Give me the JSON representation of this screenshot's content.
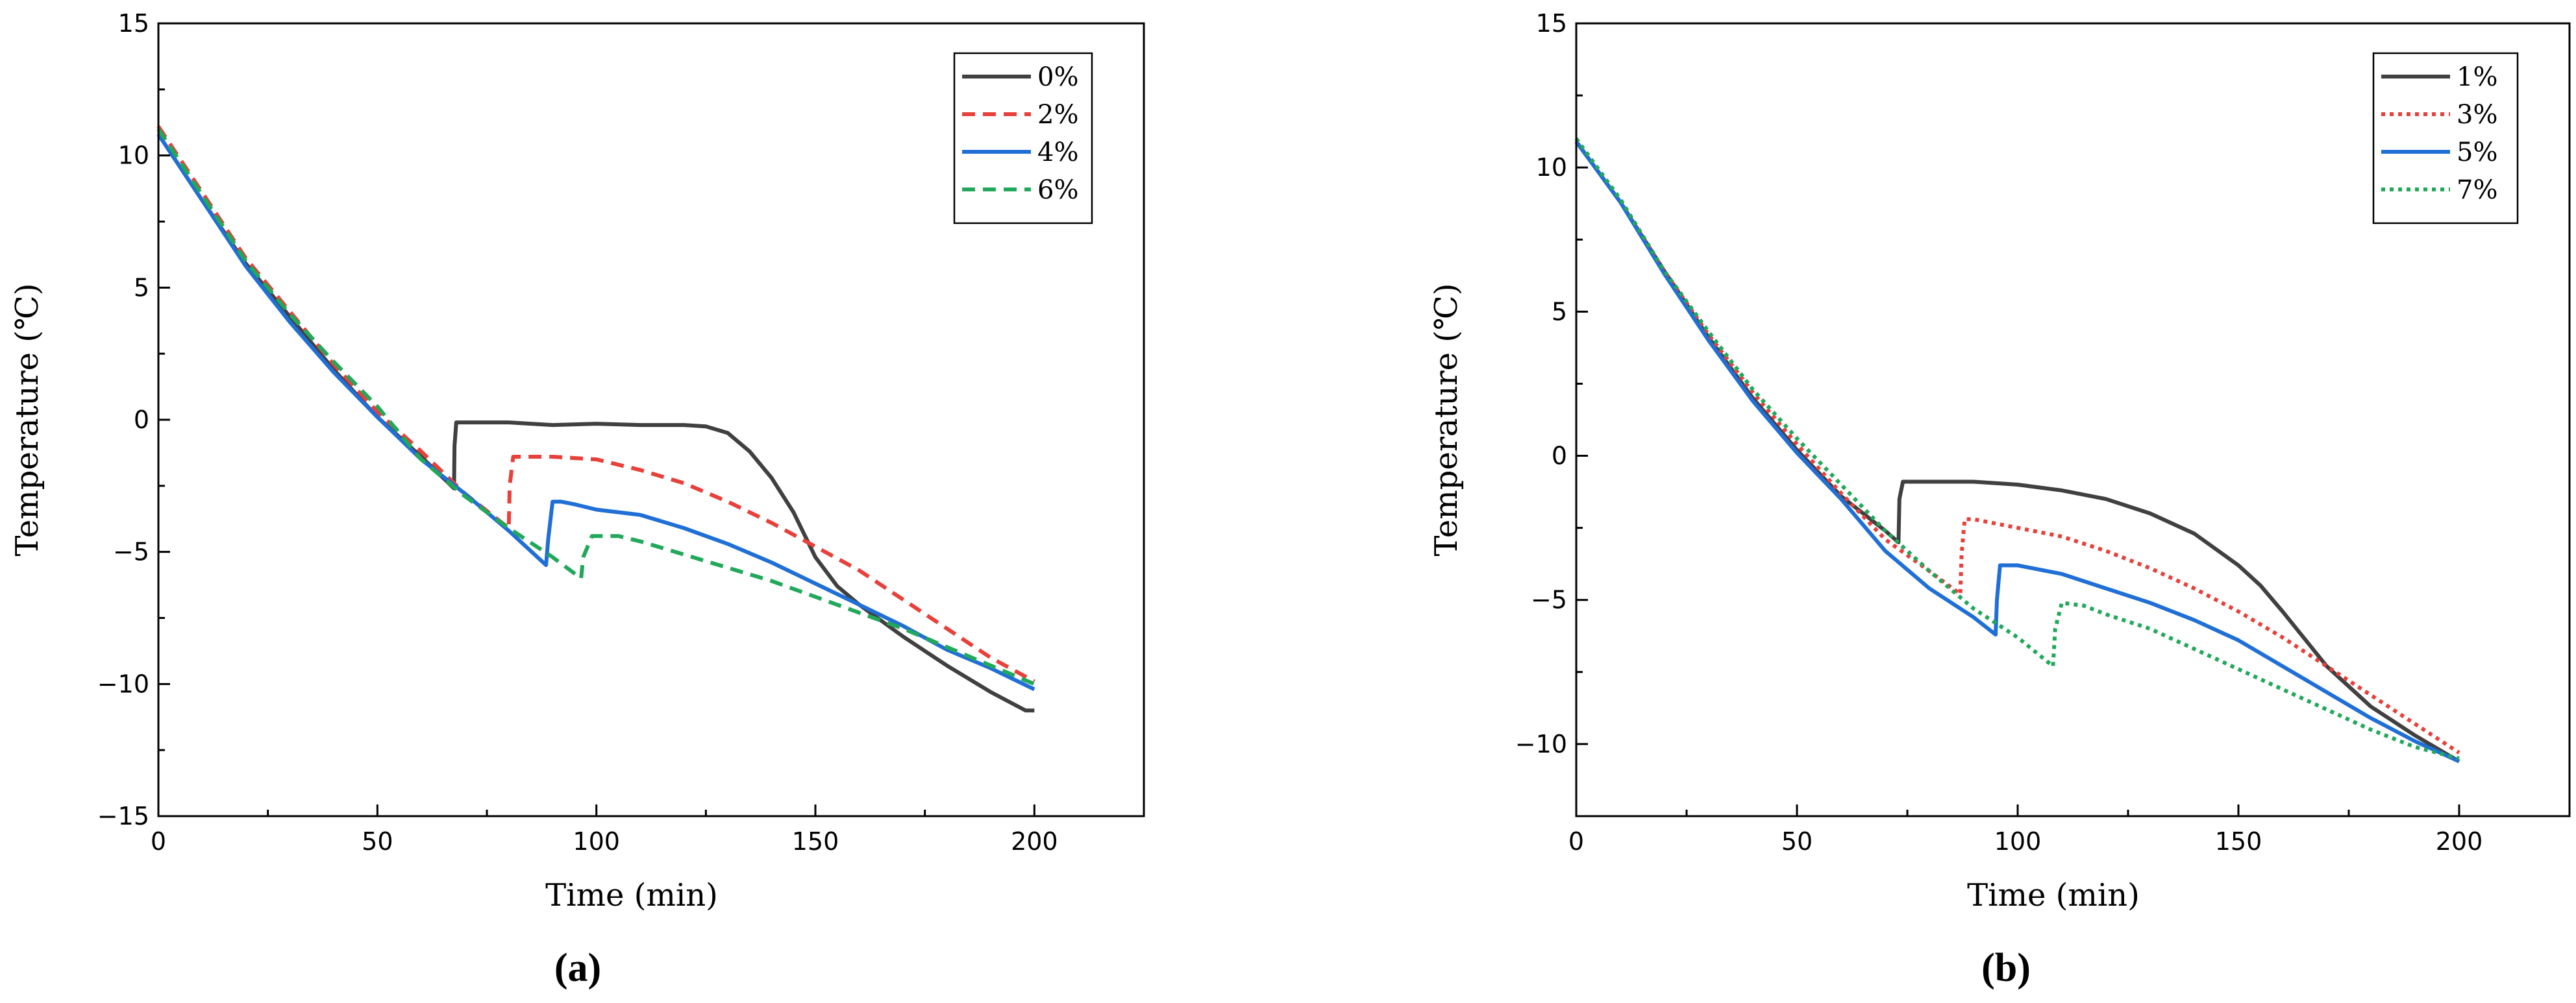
{
  "chart_data": [
    {
      "type": "line",
      "panel_label": "(a)",
      "xlabel": "Time (min)",
      "ylabel": "Temperature (℃)",
      "xlim": [
        0,
        225
      ],
      "ylim": [
        -15,
        15
      ],
      "xticks": [
        0,
        50,
        100,
        150,
        200
      ],
      "yticks": [
        -15,
        -10,
        -5,
        0,
        5,
        10,
        15
      ],
      "grid": false,
      "legend_position": "top-right",
      "series": [
        {
          "name": "0%",
          "color": "#404040",
          "dash": "solid",
          "x": [
            0,
            10,
            20,
            30,
            40,
            50,
            60,
            67.5,
            67.6,
            68,
            80,
            90,
            100,
            110,
            120,
            125,
            130,
            135,
            140,
            145,
            150,
            155,
            160,
            170,
            180,
            190,
            198,
            200
          ],
          "y": [
            10.8,
            8.3,
            5.9,
            3.9,
            1.9,
            0.1,
            -1.4,
            -2.6,
            -1.0,
            -0.1,
            -0.1,
            -0.2,
            -0.15,
            -0.2,
            -0.2,
            -0.25,
            -0.5,
            -1.2,
            -2.2,
            -3.5,
            -5.2,
            -6.3,
            -7.0,
            -8.2,
            -9.3,
            -10.3,
            -11.0,
            -11.0
          ]
        },
        {
          "name": "2%",
          "color": "#e8403a",
          "dash": "dashed",
          "x": [
            0,
            10,
            20,
            30,
            40,
            50,
            60,
            70,
            80,
            80.2,
            81,
            85,
            90,
            100,
            110,
            120,
            130,
            140,
            150,
            160,
            170,
            180,
            190,
            200
          ],
          "y": [
            11.1,
            8.6,
            6.1,
            4.1,
            2.1,
            0.3,
            -1.2,
            -2.8,
            -4.1,
            -2.5,
            -1.4,
            -1.4,
            -1.4,
            -1.5,
            -1.9,
            -2.4,
            -3.1,
            -3.9,
            -4.8,
            -5.7,
            -6.8,
            -7.9,
            -9.0,
            -9.9
          ]
        },
        {
          "name": "4%",
          "color": "#1f6fd6",
          "dash": "solid",
          "x": [
            0,
            10,
            20,
            30,
            40,
            50,
            60,
            70,
            80,
            88.5,
            89,
            90,
            92,
            95,
            100,
            110,
            120,
            130,
            140,
            150,
            160,
            170,
            180,
            190,
            200
          ],
          "y": [
            10.8,
            8.3,
            5.8,
            3.7,
            1.8,
            0.1,
            -1.5,
            -2.8,
            -4.2,
            -5.5,
            -4.5,
            -3.1,
            -3.1,
            -3.2,
            -3.4,
            -3.6,
            -4.1,
            -4.7,
            -5.4,
            -6.2,
            -7.0,
            -7.8,
            -8.7,
            -9.4,
            -10.2
          ]
        },
        {
          "name": "6%",
          "color": "#22a85b",
          "dash": "dashed",
          "x": [
            0,
            10,
            20,
            30,
            40,
            50,
            60,
            70,
            80,
            90,
            96.5,
            97,
            99,
            100,
            105,
            110,
            120,
            130,
            140,
            150,
            160,
            170,
            180,
            190,
            200
          ],
          "y": [
            11.0,
            8.5,
            6.0,
            4.0,
            2.2,
            0.5,
            -1.5,
            -2.9,
            -4.1,
            -5.2,
            -6.0,
            -5.2,
            -4.4,
            -4.4,
            -4.4,
            -4.6,
            -5.1,
            -5.6,
            -6.1,
            -6.7,
            -7.3,
            -7.9,
            -8.6,
            -9.3,
            -10.0
          ]
        }
      ]
    },
    {
      "type": "line",
      "panel_label": "(b)",
      "xlabel": "Time (min)",
      "ylabel": "Temperature (℃)",
      "xlim": [
        0,
        225
      ],
      "ylim": [
        -12.5,
        15
      ],
      "xticks": [
        0,
        50,
        100,
        150,
        200
      ],
      "yticks": [
        -10,
        -5,
        0,
        5,
        10,
        15
      ],
      "grid": false,
      "legend_position": "top-right",
      "series": [
        {
          "name": "1%",
          "color": "#404040",
          "dash": "solid",
          "x": [
            0,
            10,
            20,
            30,
            40,
            50,
            60,
            70,
            73,
            73.2,
            74,
            80,
            90,
            100,
            110,
            120,
            130,
            140,
            150,
            155,
            160,
            170,
            180,
            190,
            200
          ],
          "y": [
            10.9,
            8.8,
            6.4,
            4.1,
            2.0,
            0.2,
            -1.4,
            -2.6,
            -3.0,
            -1.5,
            -0.9,
            -0.9,
            -0.9,
            -1.0,
            -1.2,
            -1.5,
            -2.0,
            -2.7,
            -3.8,
            -4.5,
            -5.4,
            -7.3,
            -8.7,
            -9.7,
            -10.6
          ]
        },
        {
          "name": "3%",
          "color": "#e8403a",
          "dash": "dotted",
          "x": [
            0,
            10,
            20,
            30,
            40,
            50,
            60,
            70,
            80,
            87,
            87.3,
            88,
            90,
            100,
            110,
            120,
            130,
            140,
            150,
            160,
            170,
            180,
            190,
            200
          ],
          "y": [
            10.9,
            8.8,
            6.4,
            4.2,
            2.2,
            0.4,
            -1.3,
            -2.9,
            -4.0,
            -4.8,
            -3.4,
            -2.2,
            -2.2,
            -2.5,
            -2.8,
            -3.3,
            -3.9,
            -4.6,
            -5.4,
            -6.3,
            -7.3,
            -8.3,
            -9.3,
            -10.3
          ]
        },
        {
          "name": "5%",
          "color": "#1f6fd6",
          "dash": "solid",
          "x": [
            0,
            10,
            20,
            30,
            40,
            50,
            60,
            70,
            80,
            90,
            95,
            95.3,
            96,
            100,
            110,
            120,
            130,
            140,
            150,
            160,
            170,
            180,
            190,
            200
          ],
          "y": [
            10.9,
            8.8,
            6.3,
            4.0,
            1.9,
            0.1,
            -1.5,
            -3.3,
            -4.6,
            -5.6,
            -6.2,
            -5.0,
            -3.8,
            -3.8,
            -4.1,
            -4.6,
            -5.1,
            -5.7,
            -6.4,
            -7.3,
            -8.2,
            -9.1,
            -9.9,
            -10.6
          ]
        },
        {
          "name": "7%",
          "color": "#22a85b",
          "dash": "dotted",
          "x": [
            0,
            10,
            20,
            30,
            40,
            50,
            60,
            70,
            80,
            90,
            100,
            108,
            108.5,
            110,
            115,
            120,
            130,
            140,
            150,
            160,
            170,
            180,
            190,
            200
          ],
          "y": [
            11.0,
            8.9,
            6.4,
            4.3,
            2.3,
            0.6,
            -1.0,
            -2.6,
            -4.0,
            -5.3,
            -6.3,
            -7.3,
            -6.0,
            -5.1,
            -5.2,
            -5.5,
            -6.0,
            -6.7,
            -7.4,
            -8.1,
            -8.8,
            -9.5,
            -10.1,
            -10.5
          ]
        }
      ]
    }
  ]
}
